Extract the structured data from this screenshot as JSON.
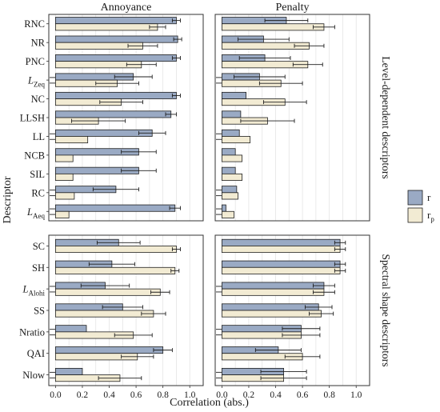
{
  "chart_data": {
    "type": "bar",
    "orientation": "horizontal",
    "columns": [
      "Annoyance",
      "Penalty"
    ],
    "row_groups": [
      "Level-dependent descriptors",
      "Spectral shape descriptors"
    ],
    "descriptors_level": [
      "RNC",
      "NR",
      "PNC",
      "LZeq",
      "NC",
      "LLSH",
      "LL",
      "NCB",
      "SIL",
      "RC",
      "LAeq"
    ],
    "descriptors_shape": [
      "SC",
      "SH",
      "LAlohi",
      "SS",
      "Nratio",
      "QAI",
      "Nlow"
    ],
    "descriptor_labels": {
      "RNC": {
        "main": "RNC",
        "sub": "",
        "italic": false
      },
      "NR": {
        "main": "NR",
        "sub": "",
        "italic": false
      },
      "PNC": {
        "main": "PNC",
        "sub": "",
        "italic": false
      },
      "LZeq": {
        "main": "L",
        "sub": "Zeq",
        "italic": true
      },
      "NC": {
        "main": "NC",
        "sub": "",
        "italic": false
      },
      "LLSH": {
        "main": "LLSH",
        "sub": "",
        "italic": false
      },
      "LL": {
        "main": "LL",
        "sub": "",
        "italic": false
      },
      "NCB": {
        "main": "NCB",
        "sub": "",
        "italic": false
      },
      "SIL": {
        "main": "SIL",
        "sub": "",
        "italic": false
      },
      "RC": {
        "main": "RC",
        "sub": "",
        "italic": false
      },
      "LAeq": {
        "main": "L",
        "sub": "Aeq",
        "italic": true
      },
      "SC": {
        "main": "SC",
        "sub": "",
        "italic": false
      },
      "SH": {
        "main": "SH",
        "sub": "",
        "italic": false
      },
      "LAlohi": {
        "main": "L",
        "sub": "Alohi",
        "italic": true
      },
      "SS": {
        "main": "SS",
        "sub": "",
        "italic": false
      },
      "Nratio": {
        "main": "Nratio",
        "sub": "",
        "italic": false
      },
      "QAI": {
        "main": "QAI",
        "sub": "",
        "italic": false
      },
      "Nlow": {
        "main": "Nlow",
        "sub": "",
        "italic": false
      }
    },
    "series": [
      {
        "key": "r",
        "name": "r",
        "name_main": "r",
        "name_sub": "",
        "color": "#9aaac4"
      },
      {
        "key": "rp",
        "name": "rp",
        "name_main": "r",
        "name_sub": "p",
        "color": "#f2ebd3"
      }
    ],
    "annoyance": {
      "RNC": {
        "r": 0.9,
        "r_err": 0.03,
        "rp": 0.76,
        "rp_err": 0.06,
        "mark": ""
      },
      "NR": {
        "r": 0.91,
        "r_err": 0.03,
        "rp": 0.65,
        "rp_err": 0.11,
        "mark": ""
      },
      "PNC": {
        "r": 0.9,
        "r_err": 0.03,
        "rp": 0.64,
        "rp_err": 0.11,
        "mark": ""
      },
      "LZeq": {
        "r": 0.58,
        "r_err": 0.14,
        "rp": 0.46,
        "rp_err": 0.16,
        "mark": "–"
      },
      "NC": {
        "r": 0.9,
        "r_err": 0.03,
        "rp": 0.49,
        "rp_err": 0.16,
        "mark": ""
      },
      "LLSH": {
        "r": 0.86,
        "r_err": 0.04,
        "rp": 0.32,
        "rp_err": 0.2,
        "mark": ""
      },
      "LL": {
        "r": 0.72,
        "r_err": 0.1,
        "rp": 0.24,
        "rp_err": 0.0,
        "mark": "–"
      },
      "NCB": {
        "r": 0.62,
        "r_err": 0.13,
        "rp": 0.13,
        "rp_err": 0.0,
        "mark": ""
      },
      "SIL": {
        "r": 0.62,
        "r_err": 0.13,
        "rp": 0.13,
        "rp_err": 0.0,
        "mark": ""
      },
      "RC": {
        "r": 0.45,
        "r_err": 0.17,
        "rp": 0.14,
        "rp_err": 0.0,
        "mark": "–"
      },
      "LAeq": {
        "r": 0.89,
        "r_err": 0.04,
        "rp": 0.1,
        "rp_err": 0.0,
        "mark": "–"
      },
      "SC": {
        "r": 0.47,
        "r_err": 0.16,
        "rp": 0.9,
        "rp_err": 0.03,
        "mark": ""
      },
      "SH": {
        "r": 0.42,
        "r_err": 0.17,
        "rp": 0.89,
        "rp_err": 0.03,
        "mark": ""
      },
      "LAlohi": {
        "r": 0.37,
        "r_err": 0.18,
        "rp": 0.78,
        "rp_err": 0.07,
        "mark": "–"
      },
      "SS": {
        "r": 0.5,
        "r_err": 0.15,
        "rp": 0.73,
        "rp_err": 0.09,
        "mark": ""
      },
      "Nratio": {
        "r": 0.23,
        "r_err": 0.0,
        "rp": 0.58,
        "rp_err": 0.14,
        "mark": "–"
      },
      "QAI": {
        "r": 0.8,
        "r_err": 0.07,
        "rp": 0.61,
        "rp_err": 0.12,
        "mark": ""
      },
      "Nlow": {
        "r": 0.2,
        "r_err": 0.0,
        "rp": 0.48,
        "rp_err": 0.16,
        "mark": "–"
      }
    },
    "penalty": {
      "RNC": {
        "r": 0.48,
        "r_err": 0.16,
        "rp": 0.76,
        "rp_err": 0.08,
        "mark": ""
      },
      "NR": {
        "r": 0.31,
        "r_err": 0.19,
        "rp": 0.65,
        "rp_err": 0.11,
        "mark": ""
      },
      "PNC": {
        "r": 0.32,
        "r_err": 0.19,
        "rp": 0.64,
        "rp_err": 0.11,
        "mark": ""
      },
      "LZeq": {
        "r": 0.28,
        "r_err": 0.19,
        "rp": 0.44,
        "rp_err": 0.16,
        "mark": "–"
      },
      "NC": {
        "r": 0.18,
        "r_err": 0.0,
        "rp": 0.47,
        "rp_err": 0.16,
        "mark": ""
      },
      "LLSH": {
        "r": 0.14,
        "r_err": 0.0,
        "rp": 0.34,
        "rp_err": 0.2,
        "mark": ""
      },
      "LL": {
        "r": 0.13,
        "r_err": 0.0,
        "rp": 0.21,
        "rp_err": 0.0,
        "mark": "–"
      },
      "NCB": {
        "r": 0.1,
        "r_err": 0.0,
        "rp": 0.15,
        "rp_err": 0.0,
        "mark": ""
      },
      "SIL": {
        "r": 0.1,
        "r_err": 0.0,
        "rp": 0.15,
        "rp_err": 0.0,
        "mark": ""
      },
      "RC": {
        "r": 0.11,
        "r_err": 0.0,
        "rp": 0.12,
        "rp_err": 0.0,
        "mark": "–"
      },
      "LAeq": {
        "r": 0.03,
        "r_err": 0.0,
        "rp": 0.09,
        "rp_err": 0.0,
        "mark": "–"
      },
      "SC": {
        "r": 0.88,
        "r_err": 0.04,
        "rp": 0.88,
        "rp_err": 0.04,
        "mark": ""
      },
      "SH": {
        "r": 0.88,
        "r_err": 0.04,
        "rp": 0.88,
        "rp_err": 0.04,
        "mark": ""
      },
      "LAlohi": {
        "r": 0.76,
        "r_err": 0.08,
        "rp": 0.76,
        "rp_err": 0.08,
        "mark": "–"
      },
      "SS": {
        "r": 0.72,
        "r_err": 0.1,
        "rp": 0.74,
        "rp_err": 0.09,
        "mark": ""
      },
      "Nratio": {
        "r": 0.59,
        "r_err": 0.14,
        "rp": 0.59,
        "rp_err": 0.14,
        "mark": "–"
      },
      "QAI": {
        "r": 0.42,
        "r_err": 0.17,
        "rp": 0.6,
        "rp_err": 0.13,
        "mark": ""
      },
      "Nlow": {
        "r": 0.46,
        "r_err": 0.17,
        "rp": 0.46,
        "rp_err": 0.17,
        "mark": "–"
      }
    },
    "xlim": [
      -0.05,
      1.1
    ],
    "xticks": [
      0.0,
      0.2,
      0.4,
      0.6,
      0.8,
      1.0
    ],
    "xtick_labels": [
      "0.0",
      "0.2",
      "0.4",
      "0.6",
      "0.8",
      "1.0"
    ],
    "xlabel": "Correlation (abs.)",
    "ylabel": "Descriptor",
    "grid": true,
    "legend_position": "right"
  }
}
